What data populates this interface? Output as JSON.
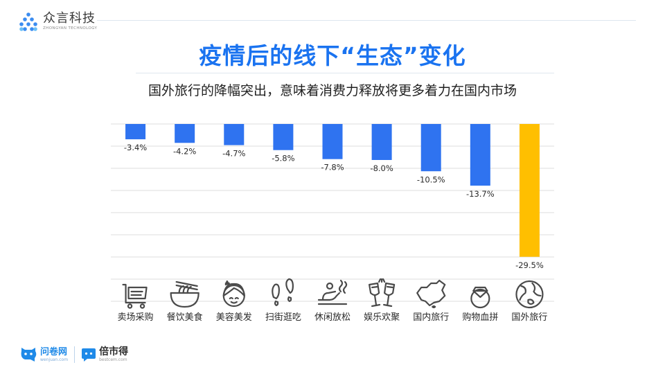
{
  "brand": {
    "name_cn": "众言科技",
    "name_en": "ZHONGYAN TECHNOLOGY"
  },
  "title": "疫情后的线下“生态”变化",
  "subtitle": "国外旅行的降幅突出，意味着消费力释放将更多着力在国内市场",
  "footer": {
    "logo1_cn": "问卷网",
    "logo1_en": "wenjuan.com",
    "logo2_cn": "倍市得",
    "logo2_en": "bestcem.com"
  },
  "colors": {
    "normal_bar": "#2f73f0",
    "highlight_bar": "#ffbf00",
    "grid": "#dcdcdc"
  },
  "chart_data": {
    "type": "bar",
    "categories": [
      "卖场采购",
      "餐饮美食",
      "美容美发",
      "扫街逛吃",
      "休闲放松",
      "娱乐欢聚",
      "国内旅行",
      "购物血拼",
      "国外旅行"
    ],
    "values": [
      -3.4,
      -4.2,
      -4.7,
      -5.8,
      -7.8,
      -8.0,
      -10.5,
      -13.7,
      -29.5
    ],
    "value_labels": [
      "-3.4%",
      "-4.2%",
      "-4.7%",
      "-5.8%",
      "-7.8%",
      "-8.0%",
      "-10.5%",
      "-13.7%",
      "-29.5%"
    ],
    "highlight_index": 8,
    "icons": [
      "cart-icon",
      "noodle-bowl-icon",
      "woman-face-icon",
      "footprints-icon",
      "massage-icon",
      "wine-glasses-icon",
      "china-map-icon",
      "diamond-ring-icon",
      "globe-icon"
    ],
    "ylim": [
      -35,
      0
    ],
    "grid": true,
    "legend": "none"
  }
}
